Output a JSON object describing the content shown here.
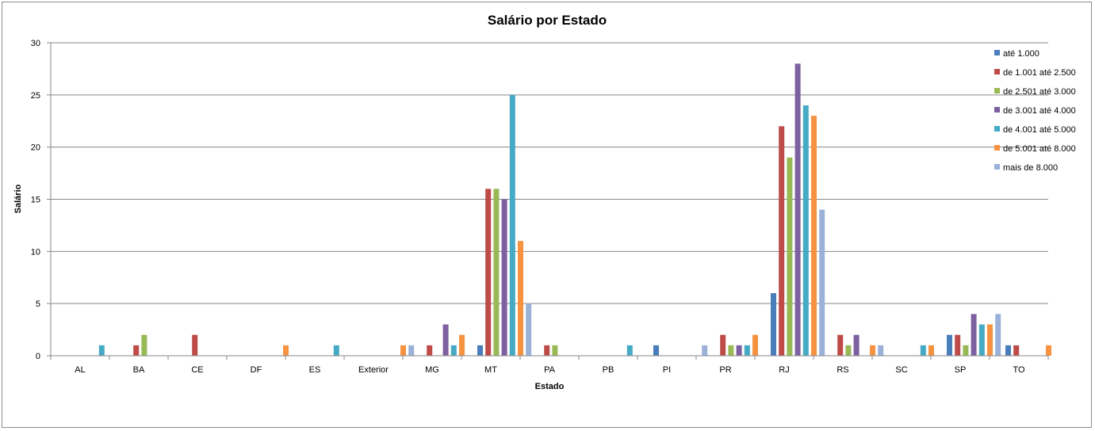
{
  "chart_data": {
    "type": "bar",
    "title": "Salário por Estado",
    "xlabel": "Estado",
    "ylabel": "Salário",
    "ylim": [
      0,
      30
    ],
    "yticks": [
      0,
      5,
      10,
      15,
      20,
      25,
      30
    ],
    "grid": true,
    "legend_position": "top-right",
    "categories": [
      "AL",
      "BA",
      "CE",
      "DF",
      "ES",
      "Exterior",
      "MG",
      "MT",
      "PA",
      "PB",
      "PI",
      "PR",
      "RJ",
      "RS",
      "SC",
      "SP",
      "TO"
    ],
    "series": [
      {
        "name": "até 1.000",
        "color": "#4a7ebb",
        "values": [
          0,
          0,
          0,
          0,
          0,
          0,
          0,
          1,
          0,
          0,
          1,
          0,
          6,
          0,
          0,
          2,
          1
        ]
      },
      {
        "name": "de 1.001 até  2.500",
        "color": "#be4b48",
        "values": [
          0,
          1,
          2,
          0,
          0,
          0,
          1,
          16,
          1,
          0,
          0,
          2,
          22,
          2,
          0,
          2,
          1
        ]
      },
      {
        "name": "de 2.501 até  3.000",
        "color": "#98b954",
        "values": [
          0,
          2,
          0,
          0,
          0,
          0,
          0,
          16,
          1,
          0,
          0,
          1,
          19,
          1,
          0,
          1,
          0
        ]
      },
      {
        "name": "de 3.001 até  4.000",
        "color": "#7d60a0",
        "values": [
          0,
          0,
          0,
          0,
          0,
          0,
          3,
          15,
          0,
          0,
          0,
          1,
          28,
          2,
          0,
          4,
          0
        ]
      },
      {
        "name": "de 4.001 até  5.000",
        "color": "#46aac5",
        "values": [
          1,
          0,
          0,
          0,
          1,
          0,
          1,
          25,
          0,
          1,
          0,
          1,
          24,
          0,
          1,
          3,
          0
        ]
      },
      {
        "name": "de 5.001 até  8.000",
        "color": "#f69240",
        "values": [
          0,
          0,
          0,
          1,
          0,
          1,
          2,
          11,
          0,
          0,
          0,
          2,
          23,
          1,
          1,
          3,
          1
        ]
      },
      {
        "name": "mais de 8.000",
        "color": "#9bb1d9",
        "values": [
          0,
          0,
          0,
          0,
          0,
          1,
          0,
          5,
          0,
          0,
          1,
          0,
          14,
          1,
          0,
          4,
          0
        ]
      }
    ]
  }
}
